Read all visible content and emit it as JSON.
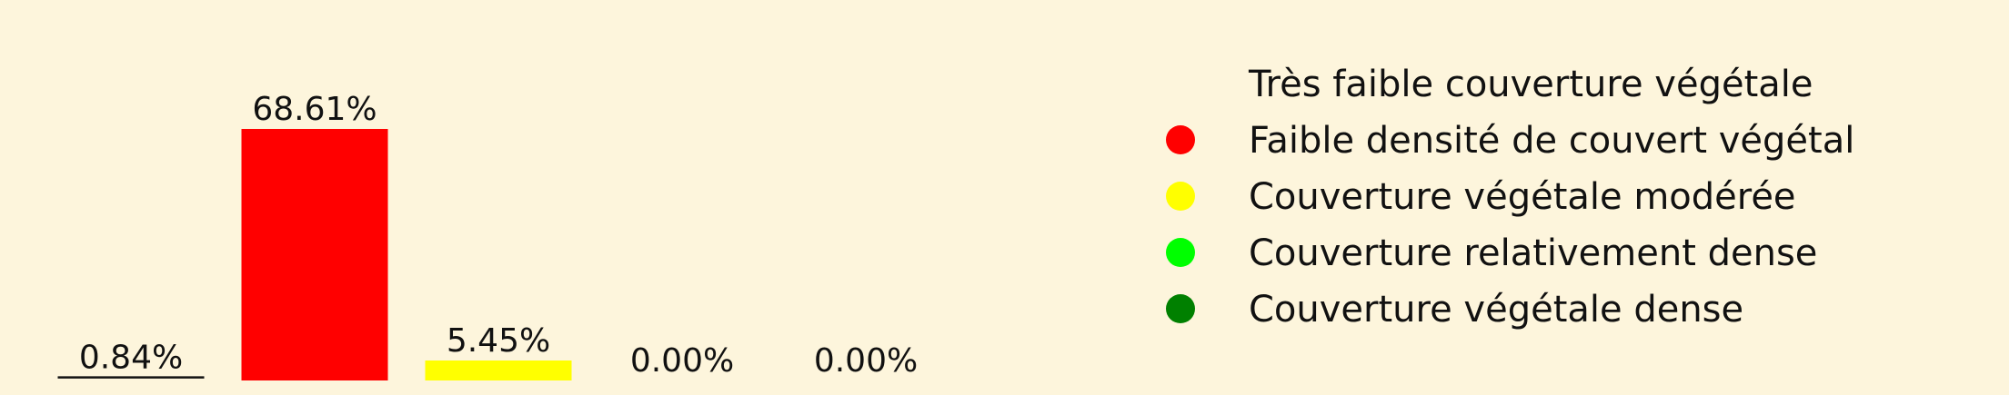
{
  "chart_data": {
    "type": "bar",
    "categories": [
      "Très faible couverture végétale",
      "Faible densité de couvert végétal",
      "Couverture végétale modérée",
      "Couverture relativement dense",
      "Couverture végétale dense"
    ],
    "values": [
      0.84,
      68.61,
      5.45,
      0.0,
      0.0
    ],
    "data_labels": [
      "0.84%",
      "68.61%",
      "5.45%",
      "0.00%",
      "0.00%"
    ],
    "colors": [
      "#fdf5dc",
      "#ff0000",
      "#ffff00",
      "#00ff00",
      "#008000"
    ],
    "title": "",
    "xlabel": "",
    "ylabel": "",
    "ylim": [
      0,
      70
    ],
    "grid": false,
    "legend_position": "right"
  }
}
